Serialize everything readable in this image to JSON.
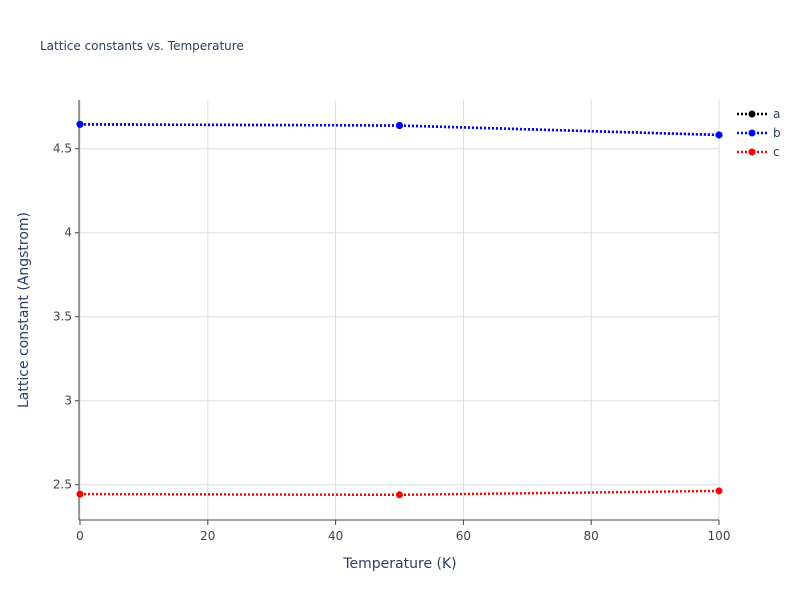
{
  "chart_data": {
    "type": "line",
    "title": "Lattice constants vs. Temperature",
    "x_label": "Temperature (K)",
    "y_label": "Lattice constant (Angstrom)",
    "x": [
      0,
      50,
      100
    ],
    "series": [
      {
        "name": "a",
        "color": "#000000",
        "values": [
          4.645,
          4.638,
          4.582
        ]
      },
      {
        "name": "b",
        "color": "#0000ff",
        "values": [
          4.645,
          4.638,
          4.582
        ]
      },
      {
        "name": "c",
        "color": "#ff0000",
        "values": [
          2.444,
          2.44,
          2.463
        ]
      }
    ],
    "xlim": [
      0,
      100
    ],
    "xticks": [
      0,
      20,
      40,
      60,
      80,
      100
    ],
    "ylim": [
      2.29,
      4.79
    ],
    "yticks": [
      2.5,
      3,
      3.5,
      4,
      4.5
    ],
    "grid": true,
    "legend": "top-right"
  }
}
